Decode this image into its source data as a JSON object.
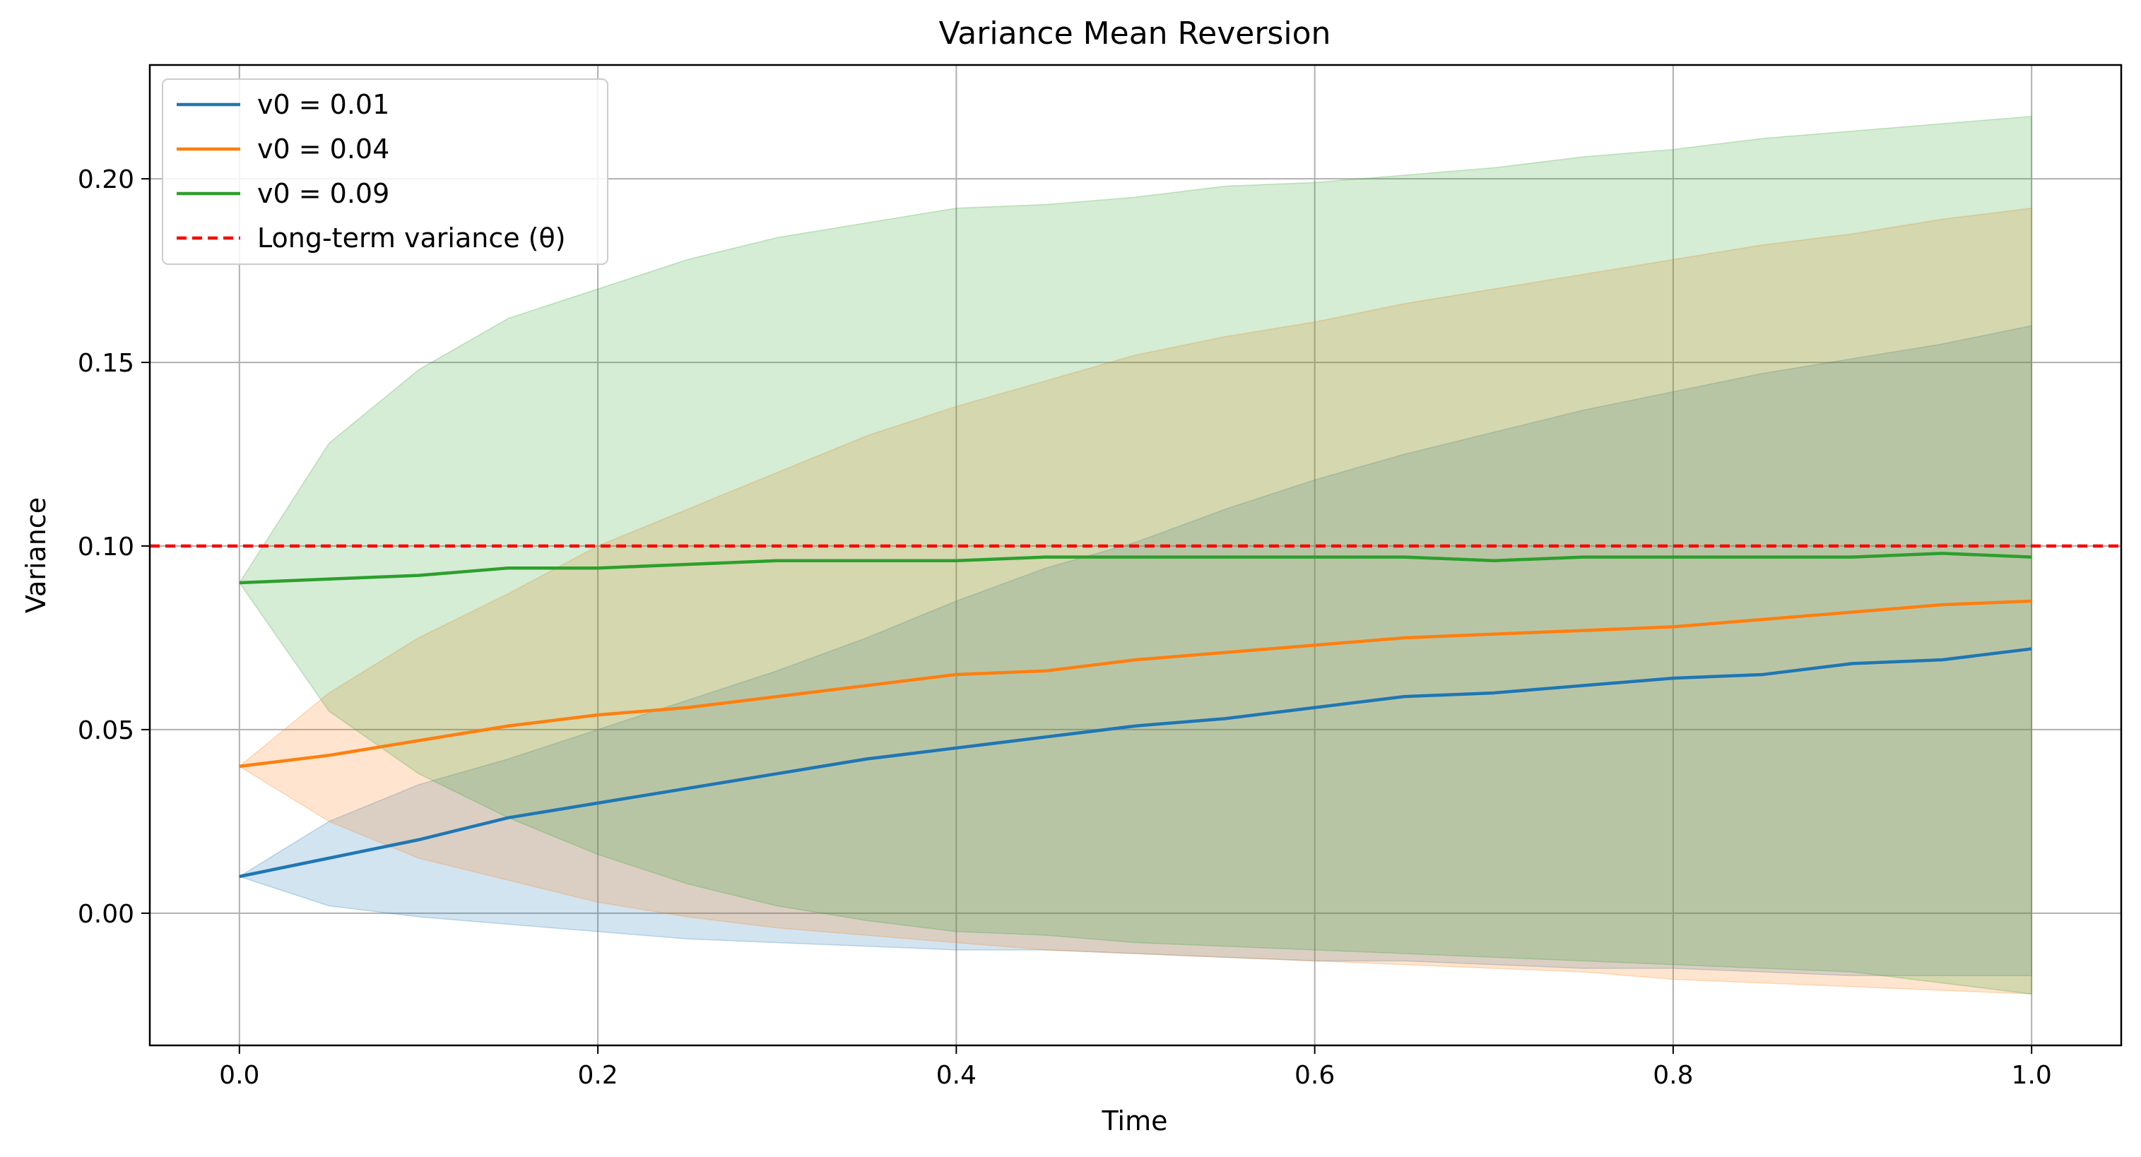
{
  "chart_data": {
    "type": "line",
    "title": "Variance Mean Reversion",
    "xlabel": "Time",
    "ylabel": "Variance",
    "xlim": [
      -0.05,
      1.05
    ],
    "ylim": [
      -0.036,
      0.231
    ],
    "xticks": [
      0.0,
      0.2,
      0.4,
      0.6,
      0.8,
      1.0
    ],
    "xtick_labels": [
      "0.0",
      "0.2",
      "0.4",
      "0.6",
      "0.8",
      "1.0"
    ],
    "yticks": [
      0.0,
      0.05,
      0.1,
      0.15,
      0.2
    ],
    "ytick_labels": [
      "0.00",
      "0.05",
      "0.10",
      "0.15",
      "0.20"
    ],
    "grid": true,
    "legend_position": "upper left",
    "x": [
      0.0,
      0.05,
      0.1,
      0.15,
      0.2,
      0.25,
      0.3,
      0.35,
      0.4,
      0.45,
      0.5,
      0.55,
      0.6,
      0.65,
      0.7,
      0.75,
      0.8,
      0.85,
      0.9,
      0.95,
      1.0
    ],
    "series": [
      {
        "name": "v0 = 0.01",
        "color": "#1f77b4",
        "mean": [
          0.01,
          0.015,
          0.02,
          0.026,
          0.03,
          0.034,
          0.038,
          0.042,
          0.045,
          0.048,
          0.051,
          0.053,
          0.056,
          0.059,
          0.06,
          0.062,
          0.064,
          0.065,
          0.068,
          0.069,
          0.072
        ],
        "upper": [
          0.01,
          0.025,
          0.035,
          0.042,
          0.05,
          0.058,
          0.066,
          0.075,
          0.085,
          0.094,
          0.101,
          0.11,
          0.118,
          0.125,
          0.131,
          0.137,
          0.142,
          0.147,
          0.151,
          0.155,
          0.16
        ],
        "lower": [
          0.01,
          0.002,
          -0.001,
          -0.003,
          -0.005,
          -0.007,
          -0.008,
          -0.009,
          -0.01,
          -0.01,
          -0.011,
          -0.012,
          -0.013,
          -0.013,
          -0.014,
          -0.015,
          -0.015,
          -0.016,
          -0.017,
          -0.017,
          -0.017
        ]
      },
      {
        "name": "v0 = 0.04",
        "color": "#ff7f0e",
        "mean": [
          0.04,
          0.043,
          0.047,
          0.051,
          0.054,
          0.056,
          0.059,
          0.062,
          0.065,
          0.066,
          0.069,
          0.071,
          0.073,
          0.075,
          0.076,
          0.077,
          0.078,
          0.08,
          0.082,
          0.084,
          0.085
        ],
        "upper": [
          0.04,
          0.06,
          0.075,
          0.087,
          0.1,
          0.11,
          0.12,
          0.13,
          0.138,
          0.145,
          0.152,
          0.157,
          0.161,
          0.166,
          0.17,
          0.174,
          0.178,
          0.182,
          0.185,
          0.189,
          0.192
        ],
        "lower": [
          0.04,
          0.025,
          0.015,
          0.009,
          0.003,
          -0.001,
          -0.004,
          -0.006,
          -0.008,
          -0.01,
          -0.011,
          -0.012,
          -0.013,
          -0.014,
          -0.015,
          -0.016,
          -0.018,
          -0.019,
          -0.02,
          -0.021,
          -0.022
        ]
      },
      {
        "name": "v0 = 0.09",
        "color": "#2ca02c",
        "mean": [
          0.09,
          0.091,
          0.092,
          0.094,
          0.094,
          0.095,
          0.096,
          0.096,
          0.096,
          0.097,
          0.097,
          0.097,
          0.097,
          0.097,
          0.096,
          0.097,
          0.097,
          0.097,
          0.097,
          0.098,
          0.097
        ],
        "upper": [
          0.09,
          0.128,
          0.148,
          0.162,
          0.17,
          0.178,
          0.184,
          0.188,
          0.192,
          0.193,
          0.195,
          0.198,
          0.199,
          0.201,
          0.203,
          0.206,
          0.208,
          0.211,
          0.213,
          0.215,
          0.217
        ],
        "lower": [
          0.09,
          0.055,
          0.038,
          0.026,
          0.016,
          0.008,
          0.002,
          -0.002,
          -0.005,
          -0.006,
          -0.008,
          -0.009,
          -0.01,
          -0.011,
          -0.012,
          -0.013,
          -0.014,
          -0.015,
          -0.016,
          -0.019,
          -0.022
        ]
      }
    ],
    "reference_line": {
      "name": "Long-term variance (θ)",
      "y": 0.1,
      "color": "#ff0000",
      "style": "dashed"
    }
  }
}
